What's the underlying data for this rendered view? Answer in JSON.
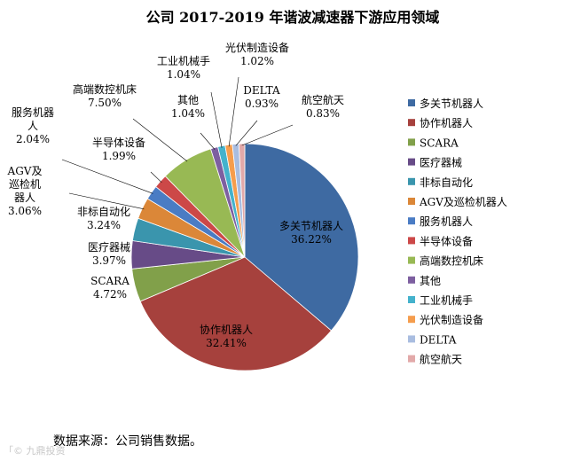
{
  "chart_data": {
    "type": "pie",
    "title": "公司 2017-2019 年谐波减速器下游应用领域",
    "slices": [
      {
        "name": "多关节机器人",
        "value": 36.22,
        "label": "36.22%",
        "color": "#3e6aa2"
      },
      {
        "name": "协作机器人",
        "value": 32.41,
        "label": "32.41%",
        "color": "#a6413d"
      },
      {
        "name": "SCARA",
        "value": 4.72,
        "label": "4.72%",
        "color": "#81a04a"
      },
      {
        "name": "医疗器械",
        "value": 3.97,
        "label": "3.97%",
        "color": "#674b87"
      },
      {
        "name": "非标自动化",
        "value": 3.24,
        "label": "3.24%",
        "color": "#3a95ad"
      },
      {
        "name": "AGV及巡检机器人",
        "value": 3.06,
        "label": "3.06%",
        "color": "#db8738"
      },
      {
        "name": "服务机器人",
        "value": 2.04,
        "label": "2.04%",
        "color": "#4a7cc4"
      },
      {
        "name": "半导体设备",
        "value": 1.99,
        "label": "1.99%",
        "color": "#cc4848"
      },
      {
        "name": "高端数控机床",
        "value": 7.5,
        "label": "7.50%",
        "color": "#98b954"
      },
      {
        "name": "其他",
        "value": 1.04,
        "label": "1.04%",
        "color": "#7d5fa0"
      },
      {
        "name": "工业机械手",
        "value": 1.04,
        "label": "1.04%",
        "color": "#44b2cc"
      },
      {
        "name": "光伏制造设备",
        "value": 1.02,
        "label": "1.02%",
        "color": "#f59d4d"
      },
      {
        "name": "DELTA",
        "value": 0.93,
        "label": "0.93%",
        "color": "#a9bde0"
      },
      {
        "name": "航空航天",
        "value": 0.83,
        "label": "0.83%",
        "color": "#e2a9a9"
      }
    ],
    "label_lines": {
      "AGV及巡检机器人": [
        "AGV及",
        "巡检机",
        "器人"
      ],
      "服务机器人": [
        "服务机器",
        "人"
      ]
    },
    "legend_position": "right"
  },
  "source_note": "数据来源：公司销售数据。",
  "watermark": "「© 九鼎投资"
}
